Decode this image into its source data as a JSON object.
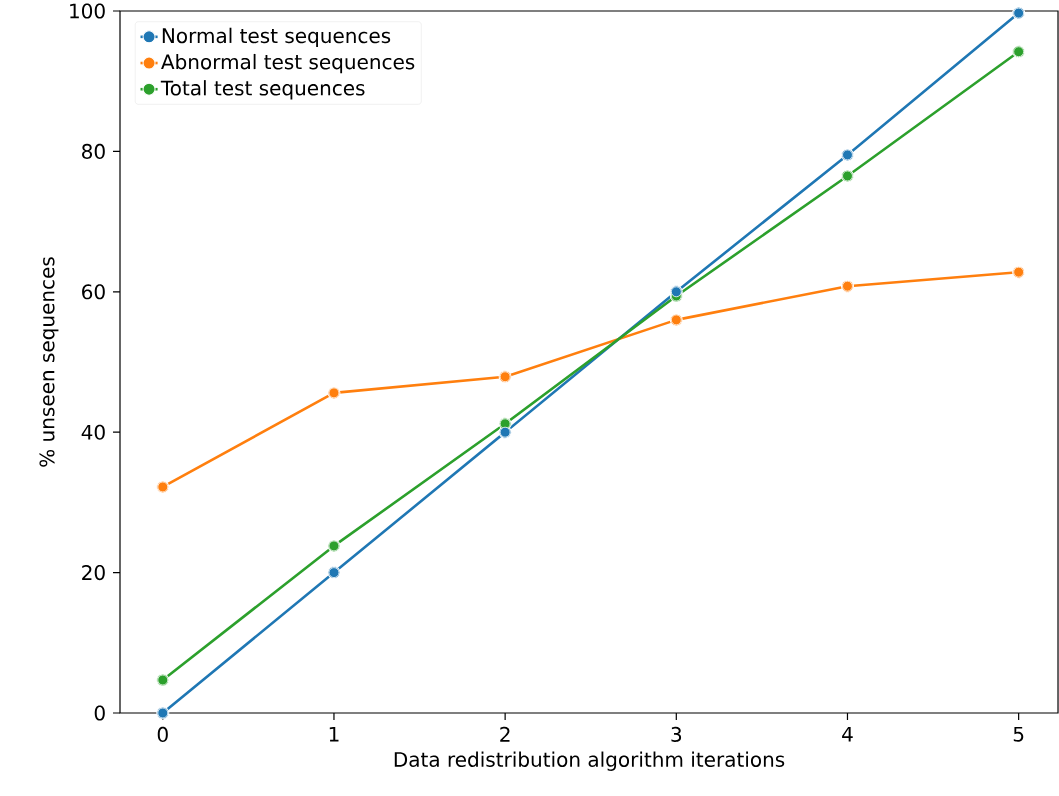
{
  "chart_data": {
    "type": "line",
    "xlabel": "Data redistribution algorithm iterations",
    "ylabel": "% unseen sequences",
    "x": [
      0,
      1,
      2,
      3,
      4,
      5
    ],
    "series": [
      {
        "name": "Normal test sequences",
        "color": "#1f77b4",
        "values": [
          0,
          20,
          40,
          60,
          79.5,
          99.7
        ]
      },
      {
        "name": "Abnormal test sequences",
        "color": "#ff7f0e",
        "values": [
          32.2,
          45.6,
          47.9,
          56.0,
          60.8,
          62.8
        ]
      },
      {
        "name": "Total test sequences",
        "color": "#2ca02c",
        "values": [
          4.7,
          23.8,
          41.2,
          59.4,
          76.5,
          94.2
        ]
      }
    ],
    "xlim": [
      -0.25,
      5.23
    ],
    "ylim": [
      0,
      100
    ],
    "xticks": [
      0,
      1,
      2,
      3,
      4,
      5
    ],
    "yticks": [
      0,
      20,
      40,
      60,
      80,
      100
    ],
    "legend": "top left",
    "marker": "circle",
    "line_style": "solid",
    "grid": false
  }
}
